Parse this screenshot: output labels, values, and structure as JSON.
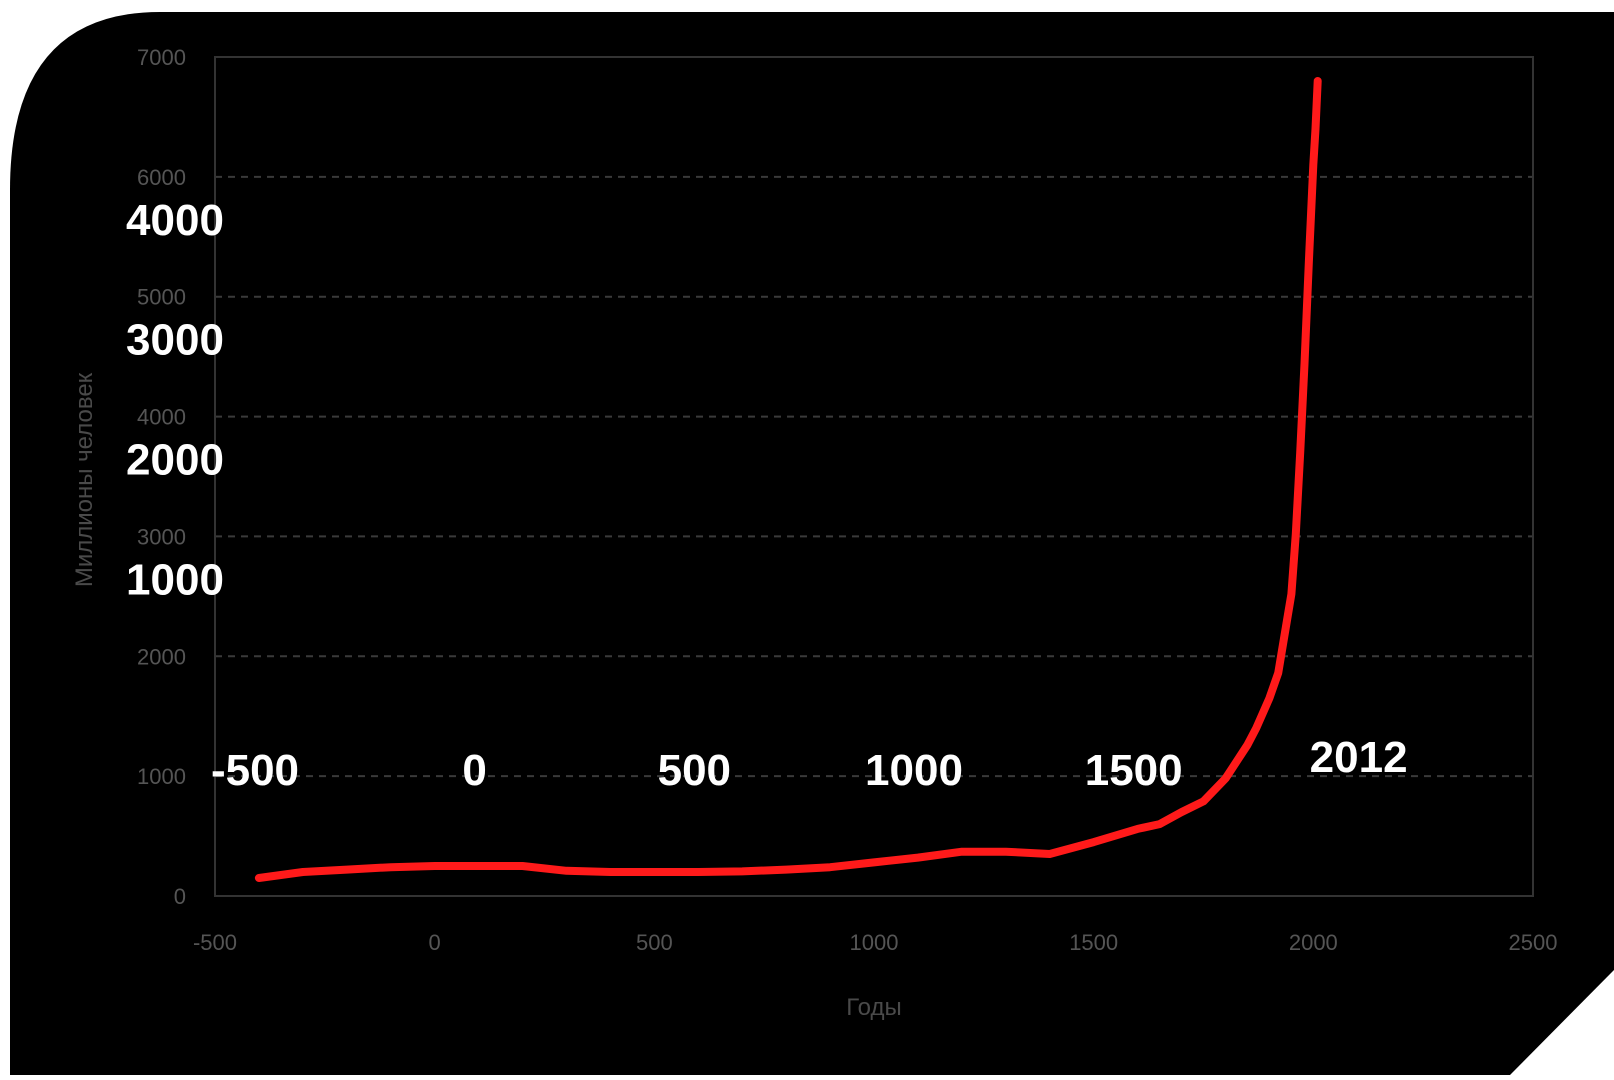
{
  "chart_data": {
    "type": "line",
    "title": "",
    "xlabel": "Годы",
    "ylabel": "Миллионы человек",
    "xlim": [
      -500,
      2500
    ],
    "ylim": [
      0,
      7000
    ],
    "xticks": [
      -500,
      0,
      500,
      1000,
      1500,
      2000,
      2500
    ],
    "yticks": [
      0,
      1000,
      2000,
      3000,
      4000,
      5000,
      6000,
      7000
    ],
    "xtick_labels": [
      "-500",
      "0",
      "500",
      "1000",
      "1500",
      "2000",
      "2500"
    ],
    "ytick_labels": [
      "0",
      "1000",
      "2000",
      "3000",
      "4000",
      "5000",
      "6000",
      "7000"
    ],
    "grid": "horizontal-dashed",
    "line_color": "#ff1a1a",
    "series": [
      {
        "x": [
          -400,
          -300,
          -200,
          -100,
          0,
          100,
          200,
          300,
          400,
          500,
          600,
          700,
          800,
          900,
          1000,
          1100,
          1200,
          1300,
          1400,
          1500,
          1600,
          1650,
          1700,
          1750,
          1800,
          1850,
          1870,
          1900,
          1920,
          1940,
          1950,
          1960,
          1970,
          1980,
          1990,
          2000,
          2005,
          2010
        ],
        "values": [
          150,
          200,
          220,
          240,
          250,
          250,
          250,
          210,
          200,
          200,
          200,
          205,
          220,
          240,
          280,
          320,
          370,
          370,
          350,
          450,
          560,
          600,
          700,
          790,
          980,
          1260,
          1400,
          1650,
          1860,
          2300,
          2520,
          3020,
          3700,
          4440,
          5300,
          6100,
          6400,
          6800
        ]
      }
    ],
    "annotations": {
      "y_overlay": [
        {
          "text": "4000",
          "near_y": 6000
        },
        {
          "text": "3000",
          "near_y": 5000
        },
        {
          "text": "2000",
          "near_y": 4000
        },
        {
          "text": "1000",
          "near_y": 3000
        }
      ],
      "x_overlay": [
        {
          "text": "-500",
          "at_x": -500
        },
        {
          "text": "0",
          "at_x": 0
        },
        {
          "text": "500",
          "at_x": 500
        },
        {
          "text": "1000",
          "at_x": 1000
        },
        {
          "text": "1500",
          "at_x": 1500
        },
        {
          "text": "2012",
          "at_x": 2012
        }
      ]
    }
  }
}
